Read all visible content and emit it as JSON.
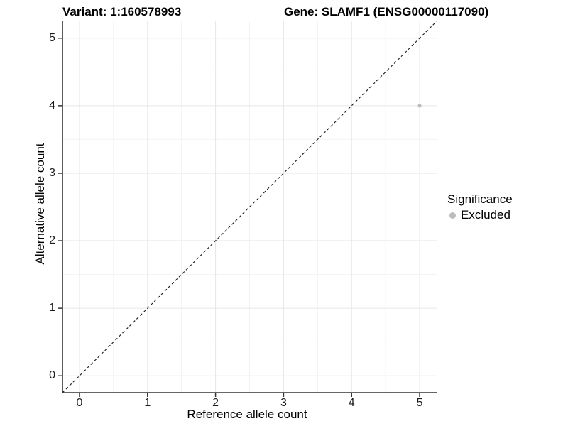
{
  "titles": {
    "variant": "Variant: 1:160578993",
    "gene": "Gene: SLAMF1 (ENSG00000117090)"
  },
  "legend": {
    "title": "Significance",
    "items": [
      {
        "label": "Excluded",
        "color": "#bdbdbd"
      }
    ]
  },
  "colors": {
    "background": "#ffffff",
    "grid_major": "#e6e6e6",
    "grid_minor": "#f2f2f2",
    "axis_line": "#333333",
    "tick_mark": "#333333",
    "text": "#1a1a1a",
    "point": "#bdbdbd",
    "reference_line": "#1a1a1a"
  },
  "chart_data": {
    "type": "scatter",
    "x": {
      "label": "Reference allele count",
      "range": [
        -0.25,
        5.25
      ],
      "major_ticks": [
        0,
        1,
        2,
        3,
        4,
        5
      ],
      "minor_ticks": [
        0.5,
        1.5,
        2.5,
        3.5,
        4.5
      ]
    },
    "y": {
      "label": "Alternative allele count",
      "range": [
        -0.25,
        5.25
      ],
      "major_ticks": [
        0,
        1,
        2,
        3,
        4,
        5
      ],
      "minor_ticks": [
        0.5,
        1.5,
        2.5,
        3.5,
        4.5
      ]
    },
    "points": [
      {
        "x": 5,
        "y": 4,
        "series": "Excluded"
      }
    ],
    "reference_line": {
      "slope": 1,
      "intercept": 0,
      "style": "dashed"
    },
    "grid": true,
    "legend_position": "right"
  }
}
